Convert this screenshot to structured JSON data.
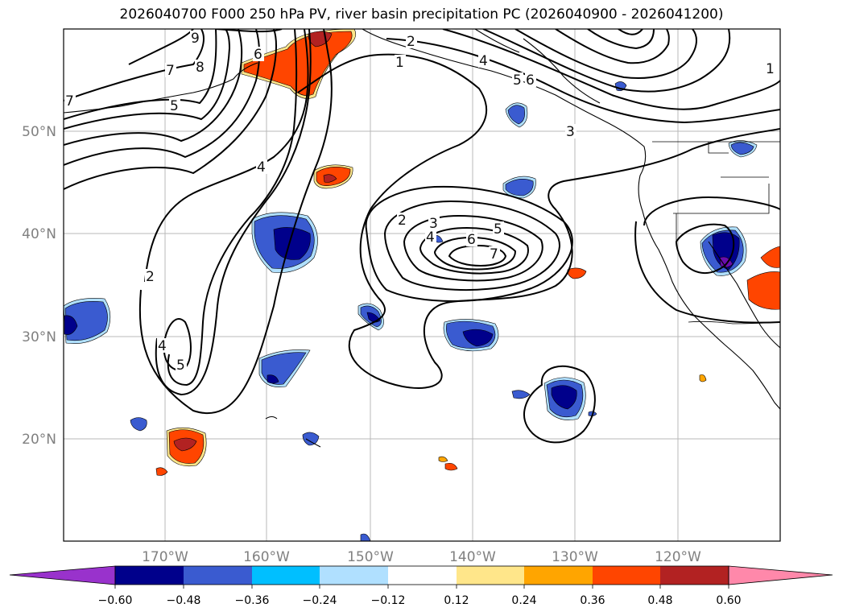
{
  "title": "2026040700 F000 250 hPa PV, river basin precipitation PC (2026040900 - 2026041200)",
  "map": {
    "lon_labels": [
      "170°W",
      "160°W",
      "150°W",
      "140°W",
      "130°W",
      "120°W"
    ],
    "lat_labels": [
      "50°N",
      "40°N",
      "30°N",
      "20°N"
    ],
    "contour_labels": [
      {
        "id": "c9",
        "text": "9"
      },
      {
        "id": "c8",
        "text": "8"
      },
      {
        "id": "c7a",
        "text": "7"
      },
      {
        "id": "c6a",
        "text": "6"
      },
      {
        "id": "c5a",
        "text": "5"
      },
      {
        "id": "c4a",
        "text": "4"
      },
      {
        "id": "c2a",
        "text": "2"
      },
      {
        "id": "c1a",
        "text": "1"
      },
      {
        "id": "c4b",
        "text": "4"
      },
      {
        "id": "c5b",
        "text": "5"
      },
      {
        "id": "c6b",
        "text": "6"
      },
      {
        "id": "c3a",
        "text": "3"
      },
      {
        "id": "c2b",
        "text": "2"
      },
      {
        "id": "c3b",
        "text": "3"
      },
      {
        "id": "c4c",
        "text": "4"
      },
      {
        "id": "c6c",
        "text": "6"
      },
      {
        "id": "c5c",
        "text": "5"
      },
      {
        "id": "c7b",
        "text": "7"
      },
      {
        "id": "c2c",
        "text": "2"
      },
      {
        "id": "c4d",
        "text": "4"
      },
      {
        "id": "c5d",
        "text": "5"
      },
      {
        "id": "c1b",
        "text": "1"
      },
      {
        "id": "c7c",
        "text": "7"
      }
    ],
    "anomaly_colors": {
      "deep_purple": "#6a0dad",
      "navy": "#00008b",
      "royal": "#3a5bd0",
      "sky": "#00bfff",
      "pale": "#b0e0ff",
      "yellow": "#ffe68a",
      "orange": "#ffa500",
      "red_orange": "#ff4500",
      "brick": "#b22222",
      "pink": "#ff88aa"
    }
  },
  "colorbar": {
    "colors": [
      "#9932cc",
      "#00008b",
      "#3a5bd0",
      "#00bfff",
      "#b0e0ff",
      "#ffffff",
      "#ffe68a",
      "#ffa500",
      "#ff4500",
      "#b22222",
      "#ff88aa"
    ],
    "tick_labels": [
      "−0.60",
      "−0.48",
      "−0.36",
      "−0.24",
      "−0.12",
      "0.12",
      "0.24",
      "0.36",
      "0.48",
      "0.60"
    ]
  }
}
